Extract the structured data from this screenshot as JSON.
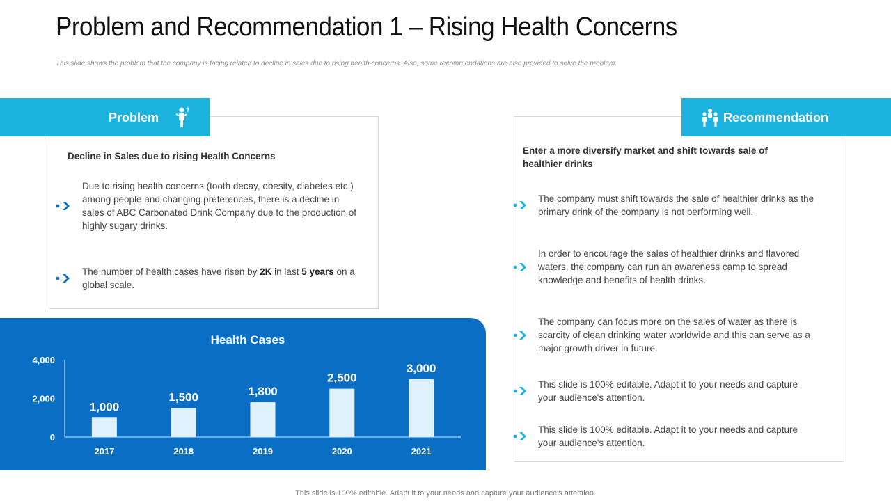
{
  "slide": {
    "title": "Problem and Recommendation 1 – Rising Health Concerns",
    "subtitle": "This slide shows the problem  that the company  is facing related  to decline  in sales due to rising health concerns.  Also, some recommendations   are also provided  to solve the problem.",
    "footer": "This slide is 100% editable.  Adapt it to your needs and capture your audience's attention."
  },
  "problem": {
    "tab_label": "Problem",
    "icon": "person-question-icon",
    "heading": "Decline in Sales due to rising Health Concerns",
    "bullets": [
      {
        "text": "Due to rising health concerns (tooth decay, obesity, diabetes etc.) among people and changing preferences, there is a decline in sales of ABC Carbonated Drink Company due to the production of highly sugary drinks."
      },
      {
        "pre": "The number of health cases have risen by ",
        "b1": "2K",
        "mid": " in last ",
        "b2": "5 years",
        "post": "  on a global scale."
      }
    ]
  },
  "recommendation": {
    "tab_label": "Recommendation",
    "icon": "people-group-icon",
    "heading": "Enter a more diversify market and shift towards sale of healthier drinks",
    "bullets": [
      "The company must shift towards the sale of healthier drinks as the primary drink of the company is not performing well.",
      "In order to encourage the sales of healthier drinks and flavored waters, the company can run an awareness camp to spread knowledge and benefits of health drinks.",
      "The company can focus more on the sales of water as there is scarcity of clean drinking water worldwide and this can serve as a major growth driver in future.",
      "This slide is 100% editable. Adapt it to your needs and capture your audience's attention.",
      "This slide is 100% editable. Adapt it to your needs and capture your audience's attention."
    ]
  },
  "colors": {
    "accent": "#1cb4df",
    "panel": "#0a6fc4",
    "bar": "#dff1fc"
  },
  "chart_data": {
    "type": "bar",
    "title": "Health Cases",
    "categories": [
      "2017",
      "2018",
      "2019",
      "2020",
      "2021"
    ],
    "values": [
      1000,
      1500,
      1800,
      2500,
      3000
    ],
    "value_labels": [
      "1,000",
      "1,500",
      "1,800",
      "2,500",
      "3,000"
    ],
    "y_ticks": [
      0,
      2000,
      4000
    ],
    "y_tick_labels": [
      "0",
      "2,000",
      "4,000"
    ],
    "ylim": [
      0,
      4000
    ],
    "xlabel": "",
    "ylabel": "",
    "grid": false
  }
}
